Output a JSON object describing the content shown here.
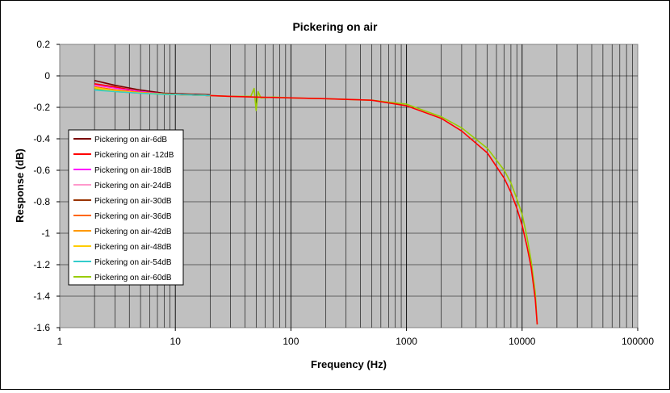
{
  "chart_data": {
    "type": "line",
    "title": "Pickering on air",
    "xlabel": "Frequency (Hz)",
    "ylabel": "Response (dB)",
    "x_scale": "log",
    "xlim": [
      1,
      100000
    ],
    "ylim": [
      -1.6,
      0.2
    ],
    "x_ticks": [
      1,
      10,
      100,
      1000,
      10000,
      100000
    ],
    "x_tick_labels": [
      "1",
      "10",
      "100",
      "1000",
      "10000",
      "100000"
    ],
    "y_ticks": [
      0.2,
      0,
      -0.2,
      -0.4,
      -0.6,
      -0.8,
      -1,
      -1.2,
      -1.4,
      -1.6
    ],
    "y_tick_labels": [
      "0.2",
      "0",
      "-0.2",
      "-0.4",
      "-0.6",
      "-0.8",
      "-1",
      "-1.2",
      "-1.4",
      "-1.6"
    ],
    "grid": true,
    "plot_background": "#c0c0c0",
    "legend_position": "left",
    "series": [
      {
        "name": "Pickering on air-6dB",
        "color": "#7a0000",
        "x": [
          2,
          3,
          5,
          8,
          12,
          20
        ],
        "y": [
          -0.03,
          -0.06,
          -0.09,
          -0.11,
          -0.115,
          -0.12
        ]
      },
      {
        "name": "Pickering on air -12dB",
        "color": "#ff0000",
        "x": [
          2,
          3,
          5,
          8,
          12,
          20,
          30,
          50,
          100,
          200,
          500,
          1000,
          2000,
          3000,
          5000,
          7000,
          8000,
          9000,
          10000,
          11000,
          12000,
          13000,
          13500
        ],
        "y": [
          -0.05,
          -0.07,
          -0.1,
          -0.115,
          -0.12,
          -0.125,
          -0.13,
          -0.135,
          -0.14,
          -0.145,
          -0.155,
          -0.19,
          -0.27,
          -0.35,
          -0.49,
          -0.65,
          -0.74,
          -0.84,
          -0.95,
          -1.08,
          -1.22,
          -1.42,
          -1.58
        ]
      },
      {
        "name": "Pickering on air-18dB",
        "color": "#ff00ff",
        "x": [
          2,
          3,
          5,
          8,
          12,
          20
        ],
        "y": [
          -0.06,
          -0.08,
          -0.1,
          -0.115,
          -0.12,
          -0.125
        ]
      },
      {
        "name": "Pickering on air-24dB",
        "color": "#ff99cc",
        "x": [
          2,
          3,
          5,
          8,
          12,
          20
        ],
        "y": [
          -0.065,
          -0.085,
          -0.105,
          -0.115,
          -0.12,
          -0.125
        ]
      },
      {
        "name": "Pickering on air-30dB",
        "color": "#993300",
        "x": [
          2,
          3,
          5,
          8,
          12,
          20
        ],
        "y": [
          -0.07,
          -0.09,
          -0.105,
          -0.115,
          -0.12,
          -0.125
        ]
      },
      {
        "name": "Pickering on air-36dB",
        "color": "#ff6600",
        "x": [
          2,
          3,
          5,
          8,
          12,
          20
        ],
        "y": [
          -0.07,
          -0.09,
          -0.105,
          -0.115,
          -0.12,
          -0.125
        ]
      },
      {
        "name": "Pickering on air-42dB",
        "color": "#ff9900",
        "x": [
          2,
          3,
          5,
          8,
          12,
          20
        ],
        "y": [
          -0.075,
          -0.095,
          -0.108,
          -0.116,
          -0.12,
          -0.125
        ]
      },
      {
        "name": "Pickering on air-48dB",
        "color": "#ffcc00",
        "x": [
          2,
          3,
          5,
          8,
          12,
          20
        ],
        "y": [
          -0.075,
          -0.095,
          -0.108,
          -0.116,
          -0.12,
          -0.125
        ]
      },
      {
        "name": "Pickering on air-54dB",
        "color": "#33cccc",
        "x": [
          2,
          3,
          5,
          8,
          12,
          20
        ],
        "y": [
          -0.09,
          -0.1,
          -0.11,
          -0.117,
          -0.12,
          -0.125
        ]
      },
      {
        "name": "Pickering on air-60dB",
        "color": "#99cc00",
        "x": [
          2,
          3,
          5,
          8,
          12,
          20,
          30,
          45,
          48,
          50,
          52,
          55,
          70,
          100,
          200,
          500,
          1000,
          2000,
          3000,
          5000,
          7000,
          8000,
          9000,
          10000,
          11000,
          12000,
          13000,
          13500
        ],
        "y": [
          -0.08,
          -0.1,
          -0.11,
          -0.118,
          -0.12,
          -0.125,
          -0.13,
          -0.13,
          -0.08,
          -0.22,
          -0.1,
          -0.14,
          -0.135,
          -0.14,
          -0.145,
          -0.155,
          -0.18,
          -0.26,
          -0.33,
          -0.46,
          -0.6,
          -0.68,
          -0.78,
          -0.88,
          -1.02,
          -1.18,
          -1.38,
          -1.58
        ]
      }
    ]
  }
}
